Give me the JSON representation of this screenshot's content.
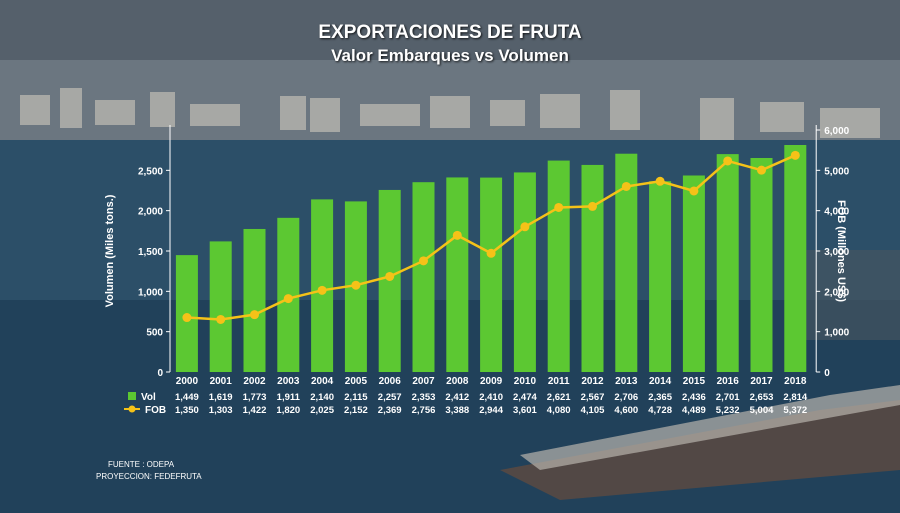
{
  "title": "EXPORTACIONES DE FRUTA",
  "subtitle": "Valor Embarques vs Volumen",
  "source": {
    "fuente": "FUENTE   :  ODEPA",
    "proyeccion": "PROYECCION: FEDEFRUTA"
  },
  "colors": {
    "bar": "#5cc832",
    "line": "#f5c218",
    "text": "#ffffff"
  },
  "chart_data": {
    "type": "bar",
    "title": "EXPORTACIONES DE FRUTA",
    "subtitle": "Valor Embarques vs Volumen",
    "categories": [
      "2000",
      "2001",
      "2002",
      "2003",
      "2004",
      "2005",
      "2006",
      "2007",
      "2008",
      "2009",
      "2010",
      "2011",
      "2012",
      "2013",
      "2014",
      "2015",
      "2016",
      "2017",
      "2018"
    ],
    "series": [
      {
        "name": "Vol",
        "type": "bar",
        "axis": "left",
        "values": [
          1449,
          1619,
          1773,
          1911,
          2140,
          2115,
          2257,
          2353,
          2412,
          2410,
          2474,
          2621,
          2567,
          2706,
          2365,
          2436,
          2701,
          2653,
          2814
        ],
        "labels": [
          "1,449",
          "1,619",
          "1,773",
          "1,911",
          "2,140",
          "2,115",
          "2,257",
          "2,353",
          "2,412",
          "2,410",
          "2,474",
          "2,621",
          "2,567",
          "2,706",
          "2,365",
          "2,436",
          "2,701",
          "2,653",
          "2,814"
        ]
      },
      {
        "name": "FOB",
        "type": "line",
        "axis": "right",
        "values": [
          1350,
          1303,
          1422,
          1820,
          2025,
          2152,
          2369,
          2756,
          3388,
          2944,
          3601,
          4080,
          4105,
          4600,
          4728,
          4489,
          5232,
          5004,
          5372
        ],
        "labels": [
          "1,350",
          "1,303",
          "1,422",
          "1,820",
          "2,025",
          "2,152",
          "2,369",
          "2,756",
          "3,388",
          "2,944",
          "3,601",
          "4,080",
          "4,105",
          "4,600",
          "4,728",
          "4,489",
          "5,232",
          "5,004",
          "5,372"
        ]
      }
    ],
    "ylabel": "Volumen (Miles tons.)",
    "ylim": [
      0,
      3000
    ],
    "yticks": [
      0,
      500,
      1000,
      1500,
      2000,
      2500
    ],
    "ytick_labels": [
      "0",
      "500",
      "1,000",
      "1,500",
      "2,000",
      "2,500"
    ],
    "y2label": "FOB (Millones US$)",
    "y2lim": [
      0,
      6000
    ],
    "y2ticks": [
      0,
      1000,
      2000,
      3000,
      4000,
      5000,
      6000
    ],
    "y2tick_labels": [
      "0",
      "1,000",
      "2,000",
      "3,000",
      "4,000",
      "5,000",
      "6,000"
    ],
    "grid": false,
    "legend": "table-bottom-left"
  }
}
